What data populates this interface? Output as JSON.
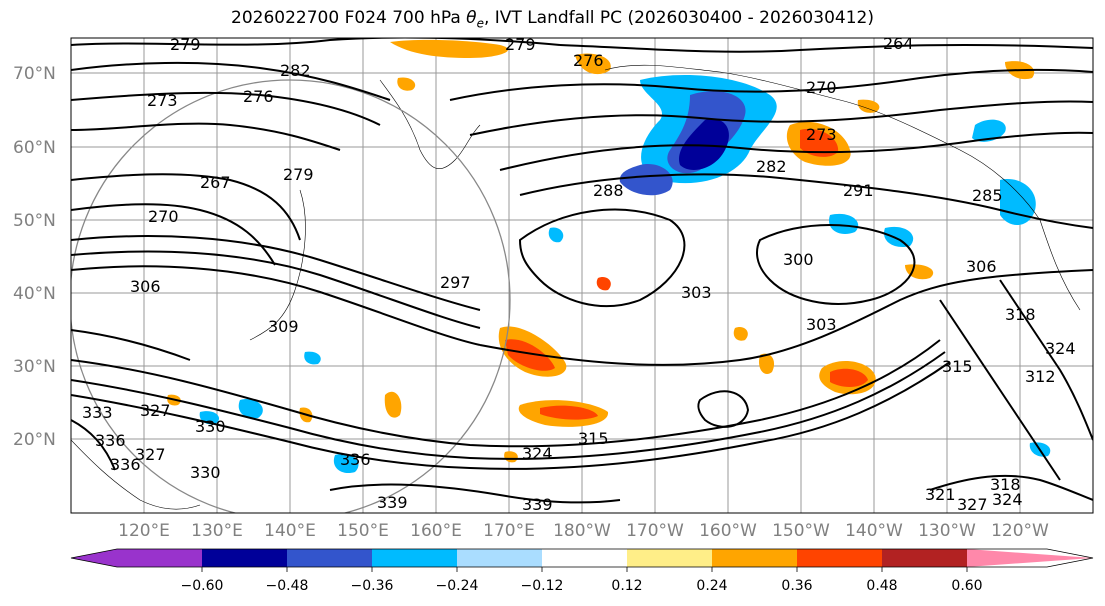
{
  "title_prefix": "2026022700 F024 700 hPa ",
  "title_symbol": "θ",
  "title_sub": "e",
  "title_suffix": ", IVT Landfall PC (2026030400 - 2026030412)",
  "lat_labels": [
    "70°N",
    "60°N",
    "50°N",
    "40°N",
    "30°N",
    "20°N"
  ],
  "lon_labels": [
    "120°E",
    "130°E",
    "140°E",
    "150°E",
    "160°E",
    "170°E",
    "180°W",
    "170°W",
    "160°W",
    "150°W",
    "140°W",
    "130°W",
    "120°W"
  ],
  "colorbar": {
    "ticks": [
      "−0.60",
      "−0.48",
      "−0.36",
      "−0.24",
      "−0.12",
      "0.12",
      "0.24",
      "0.36",
      "0.48",
      "0.60"
    ],
    "colors": [
      "#9933cc",
      "#000099",
      "#3355cc",
      "#00bbff",
      "#aaddff",
      "#ffffff",
      "#ffee88",
      "#ffa500",
      "#ff4400",
      "#b22222",
      "#ff88aa"
    ]
  },
  "contour_labels": [
    "279",
    "279",
    "276",
    "264",
    "282",
    "273",
    "276",
    "270",
    "267",
    "279",
    "270",
    "273",
    "288",
    "282",
    "291",
    "285",
    "306",
    "300",
    "303",
    "297",
    "303",
    "306",
    "309",
    "318",
    "315",
    "312",
    "324",
    "333",
    "327",
    "336",
    "330",
    "336",
    "327",
    "330",
    "315",
    "324",
    "339",
    "336",
    "339",
    "321",
    "318",
    "324",
    "327"
  ]
}
